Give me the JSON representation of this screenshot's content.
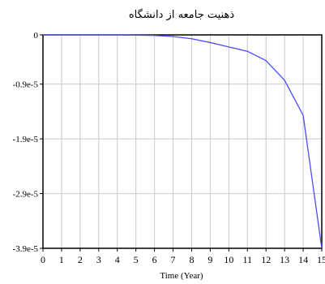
{
  "chart_data": {
    "type": "line",
    "title": "ذهنیت جامعه از دانشگاه",
    "xlabel": "Time (Year)",
    "ylabel": "",
    "x": [
      0,
      1,
      2,
      3,
      4,
      5,
      6,
      7,
      8,
      9,
      10,
      11,
      12,
      13,
      14,
      15
    ],
    "series": [
      {
        "name": "",
        "values": [
          0,
          0,
          0,
          0,
          0,
          -5e-08,
          -1e-07,
          -3e-07,
          -7e-07,
          -1.4e-06,
          -2.2e-06,
          -3e-06,
          -4.7e-06,
          -8.3e-06,
          -1.47e-05,
          -3.9e-05
        ]
      }
    ],
    "xlim": [
      0,
      15
    ],
    "ylim": [
      -3.9e-05,
      0
    ],
    "x_ticks": [
      "0",
      "1",
      "2",
      "3",
      "4",
      "5",
      "6",
      "7",
      "8",
      "9",
      "10",
      "11",
      "12",
      "13",
      "14",
      "15"
    ],
    "y_ticks": [
      {
        "value": 0,
        "label": "0"
      },
      {
        "value": -9e-06,
        "label": "-0.9e-5"
      },
      {
        "value": -1.9e-05,
        "label": "-1.9e-5"
      },
      {
        "value": -2.9e-05,
        "label": "-2.9e-5"
      },
      {
        "value": -3.9e-05,
        "label": "-3.9e-5"
      }
    ],
    "grid": true,
    "legend": "none",
    "colors": {
      "line": "#4b4bff",
      "grid": "#c8c8c8",
      "axis": "#000000"
    }
  }
}
